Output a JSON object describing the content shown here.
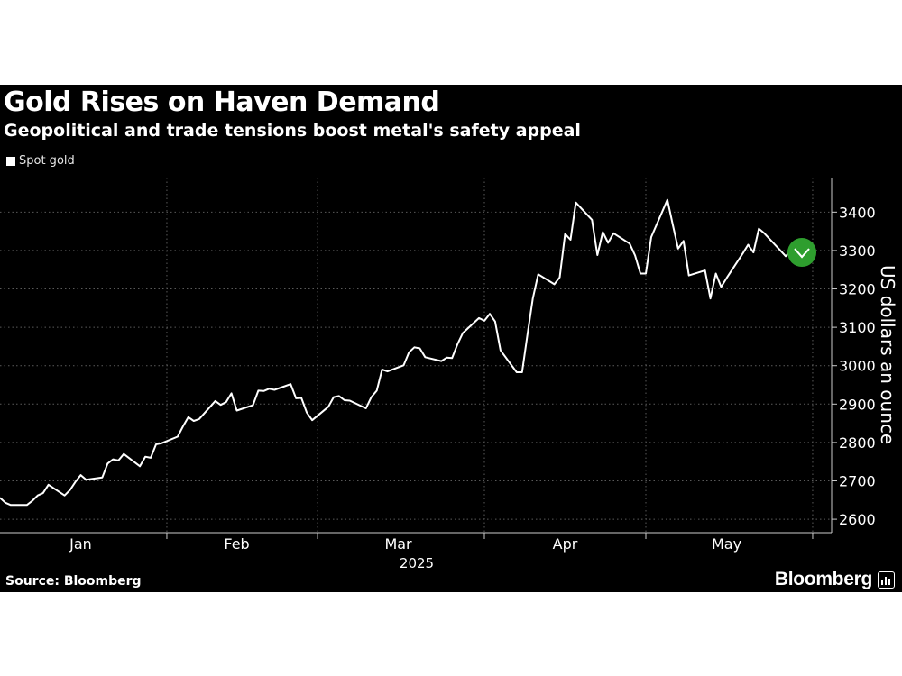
{
  "header": {
    "title": "Gold Rises on Haven Demand",
    "subtitle": "Geopolitical and trade tensions boost metal's safety appeal"
  },
  "legend": {
    "label": "Spot gold"
  },
  "footer": {
    "source": "Source: Bloomberg",
    "brand": "Bloomberg"
  },
  "colors": {
    "background": "#000000",
    "line": "#ffffff",
    "highlight": "#2e9e2e",
    "grid": "#5a5a5a"
  },
  "chart_data": {
    "type": "line",
    "title": "Gold Rises on Haven Demand",
    "subtitle": "Geopolitical and trade tensions boost metal's safety appeal",
    "ylabel": "US dollars an ounce",
    "xlabel": "2025",
    "x_range": [
      "2025-01-01",
      "2025-05-31"
    ],
    "ylim": [
      2565,
      3490
    ],
    "yticks": [
      2600,
      2700,
      2800,
      2900,
      3000,
      3100,
      3200,
      3300,
      3400
    ],
    "xticks": [
      {
        "label": "Jan",
        "date": "2025-01-16"
      },
      {
        "label": "Feb",
        "date": "2025-02-14"
      },
      {
        "label": "Mar",
        "date": "2025-03-16"
      },
      {
        "label": "Apr",
        "date": "2025-04-16"
      },
      {
        "label": "May",
        "date": "2025-05-16"
      }
    ],
    "x_dividers": [
      "2025-02-01",
      "2025-03-01",
      "2025-04-01",
      "2025-05-01",
      "2025-06-01"
    ],
    "year_label": "2025",
    "grid": true,
    "y_axis_position": "right",
    "legend_position": "top-left",
    "highlight": {
      "date": "2025-05-30",
      "value": 3295,
      "icon": "down-chevron-icon"
    },
    "series": [
      {
        "name": "Spot gold",
        "points": [
          [
            "2025-01-01",
            2656
          ],
          [
            "2025-01-02",
            2643
          ],
          [
            "2025-01-03",
            2637
          ],
          [
            "2025-01-06",
            2637
          ],
          [
            "2025-01-07",
            2648
          ],
          [
            "2025-01-08",
            2662
          ],
          [
            "2025-01-09",
            2668
          ],
          [
            "2025-01-10",
            2690
          ],
          [
            "2025-01-13",
            2662
          ],
          [
            "2025-01-14",
            2676
          ],
          [
            "2025-01-15",
            2697
          ],
          [
            "2025-01-16",
            2715
          ],
          [
            "2025-01-17",
            2703
          ],
          [
            "2025-01-20",
            2709
          ],
          [
            "2025-01-21",
            2745
          ],
          [
            "2025-01-22",
            2756
          ],
          [
            "2025-01-23",
            2753
          ],
          [
            "2025-01-24",
            2770
          ],
          [
            "2025-01-27",
            2738
          ],
          [
            "2025-01-28",
            2763
          ],
          [
            "2025-01-29",
            2760
          ],
          [
            "2025-01-30",
            2795
          ],
          [
            "2025-01-31",
            2798
          ],
          [
            "2025-02-03",
            2815
          ],
          [
            "2025-02-04",
            2842
          ],
          [
            "2025-02-05",
            2866
          ],
          [
            "2025-02-06",
            2856
          ],
          [
            "2025-02-07",
            2861
          ],
          [
            "2025-02-10",
            2908
          ],
          [
            "2025-02-11",
            2898
          ],
          [
            "2025-02-12",
            2905
          ],
          [
            "2025-02-13",
            2928
          ],
          [
            "2025-02-14",
            2883
          ],
          [
            "2025-02-17",
            2897
          ],
          [
            "2025-02-18",
            2935
          ],
          [
            "2025-02-19",
            2934
          ],
          [
            "2025-02-20",
            2940
          ],
          [
            "2025-02-21",
            2937
          ],
          [
            "2025-02-24",
            2952
          ],
          [
            "2025-02-25",
            2915
          ],
          [
            "2025-02-26",
            2916
          ],
          [
            "2025-02-27",
            2878
          ],
          [
            "2025-02-28",
            2858
          ],
          [
            "2025-03-03",
            2893
          ],
          [
            "2025-03-04",
            2918
          ],
          [
            "2025-03-05",
            2921
          ],
          [
            "2025-03-06",
            2910
          ],
          [
            "2025-03-07",
            2909
          ],
          [
            "2025-03-10",
            2889
          ],
          [
            "2025-03-11",
            2918
          ],
          [
            "2025-03-12",
            2935
          ],
          [
            "2025-03-13",
            2990
          ],
          [
            "2025-03-14",
            2985
          ],
          [
            "2025-03-17",
            3001
          ],
          [
            "2025-03-18",
            3035
          ],
          [
            "2025-03-19",
            3048
          ],
          [
            "2025-03-20",
            3045
          ],
          [
            "2025-03-21",
            3022
          ],
          [
            "2025-03-24",
            3012
          ],
          [
            "2025-03-25",
            3021
          ],
          [
            "2025-03-26",
            3020
          ],
          [
            "2025-03-27",
            3056
          ],
          [
            "2025-03-28",
            3085
          ],
          [
            "2025-03-31",
            3124
          ],
          [
            "2025-04-01",
            3117
          ],
          [
            "2025-04-02",
            3135
          ],
          [
            "2025-04-03",
            3115
          ],
          [
            "2025-04-04",
            3040
          ],
          [
            "2025-04-07",
            2983
          ],
          [
            "2025-04-08",
            2983
          ],
          [
            "2025-04-09",
            3080
          ],
          [
            "2025-04-10",
            3175
          ],
          [
            "2025-04-11",
            3238
          ],
          [
            "2025-04-14",
            3212
          ],
          [
            "2025-04-15",
            3230
          ],
          [
            "2025-04-16",
            3343
          ],
          [
            "2025-04-17",
            3328
          ],
          [
            "2025-04-18",
            3425
          ],
          [
            "2025-04-21",
            3380
          ],
          [
            "2025-04-22",
            3288
          ],
          [
            "2025-04-23",
            3348
          ],
          [
            "2025-04-24",
            3320
          ],
          [
            "2025-04-25",
            3345
          ],
          [
            "2025-04-28",
            3318
          ],
          [
            "2025-04-29",
            3287
          ],
          [
            "2025-04-30",
            3240
          ],
          [
            "2025-05-01",
            3240
          ],
          [
            "2025-05-02",
            3335
          ],
          [
            "2025-05-05",
            3432
          ],
          [
            "2025-05-06",
            3368
          ],
          [
            "2025-05-07",
            3305
          ],
          [
            "2025-05-08",
            3325
          ],
          [
            "2025-05-09",
            3235
          ],
          [
            "2025-05-12",
            3248
          ],
          [
            "2025-05-13",
            3175
          ],
          [
            "2025-05-14",
            3240
          ],
          [
            "2025-05-15",
            3205
          ],
          [
            "2025-05-16",
            3228
          ],
          [
            "2025-05-19",
            3292
          ],
          [
            "2025-05-20",
            3315
          ],
          [
            "2025-05-21",
            3295
          ],
          [
            "2025-05-22",
            3357
          ],
          [
            "2025-05-23",
            3345
          ],
          [
            "2025-05-26",
            3300
          ],
          [
            "2025-05-27",
            3285
          ],
          [
            "2025-05-28",
            3300
          ],
          [
            "2025-05-29",
            3318
          ],
          [
            "2025-05-30",
            3295
          ]
        ]
      }
    ]
  }
}
